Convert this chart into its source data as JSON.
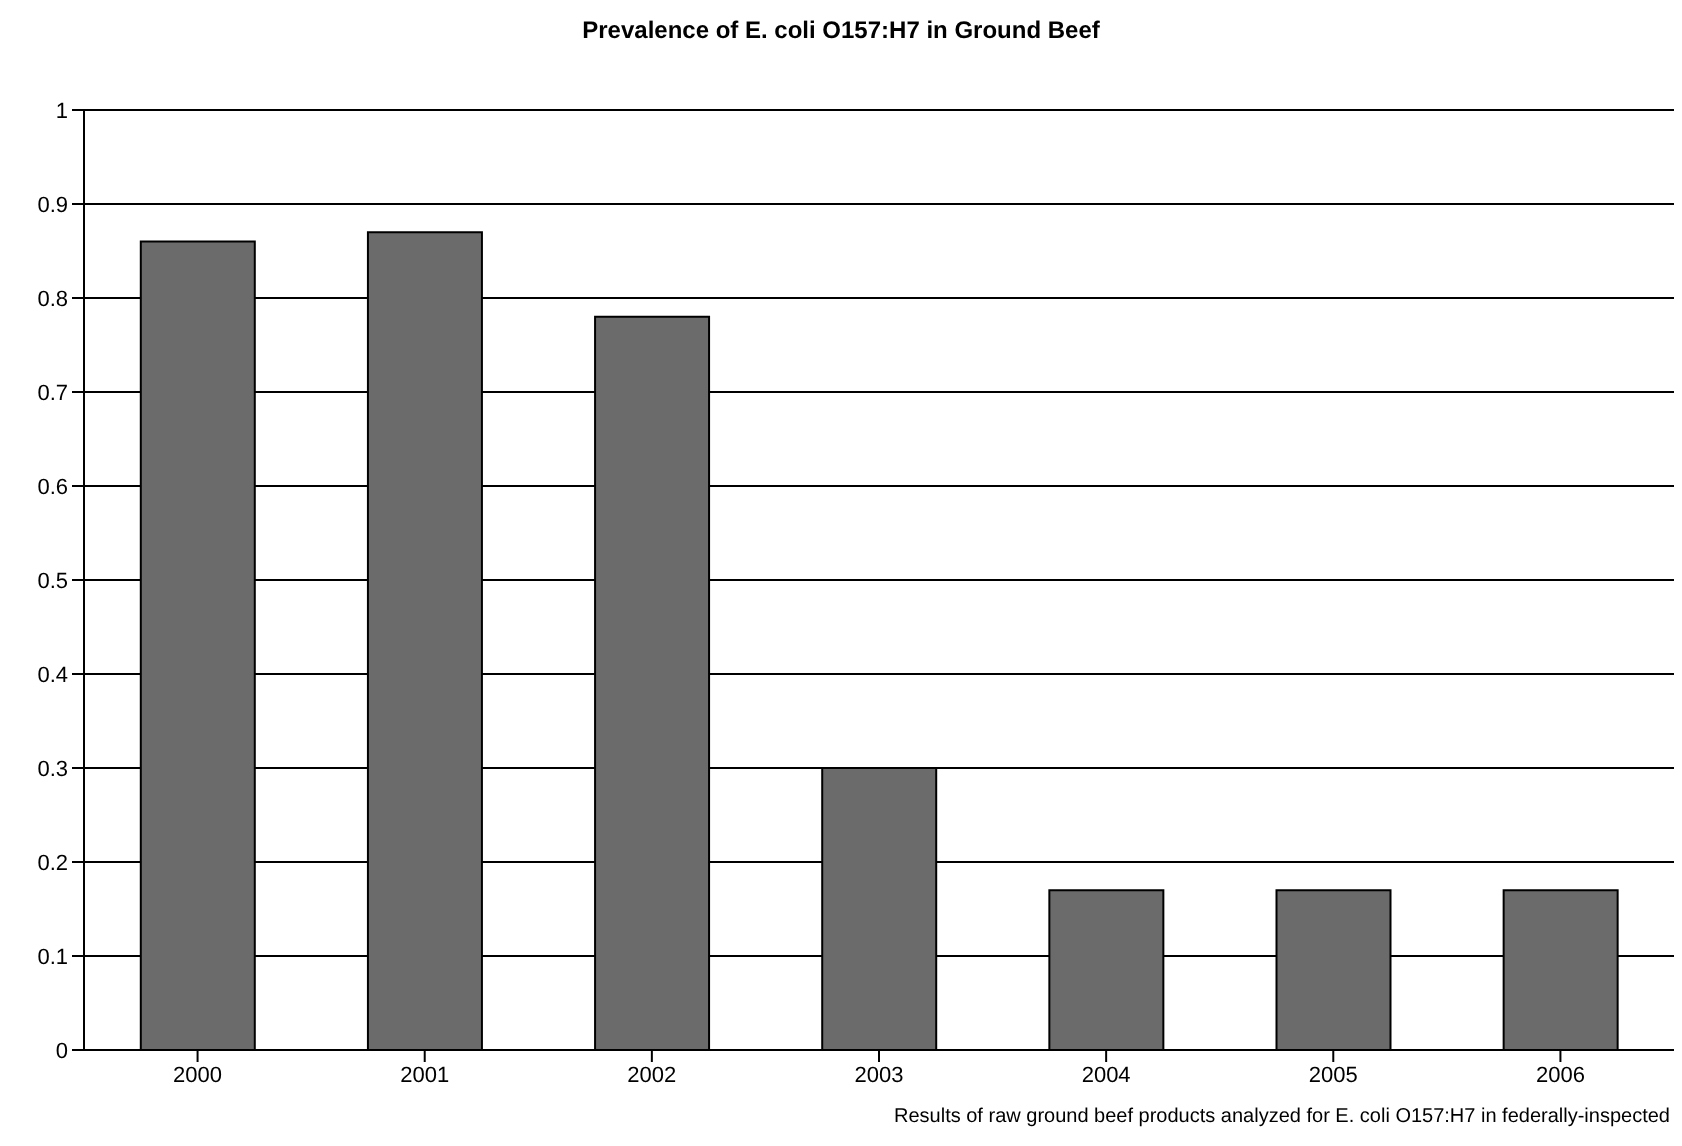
{
  "chart_data": {
    "type": "bar",
    "title": "Prevalence of E. coli O157:H7 in Ground Beef",
    "categories": [
      "2000",
      "2001",
      "2002",
      "2003",
      "2004",
      "2005",
      "2006"
    ],
    "values": [
      0.86,
      0.87,
      0.78,
      0.3,
      0.17,
      0.17,
      0.17
    ],
    "color": "#6b6b6b",
    "ylim": [
      0,
      1
    ],
    "yticks": [
      0,
      0.1,
      0.2,
      0.3,
      0.4,
      0.5,
      0.6,
      0.7,
      0.8,
      0.9,
      1
    ],
    "grid": "y",
    "annotations": [
      "Results of raw ground beef products analyzed for E. coli O157:H7 in federally-inspected"
    ]
  }
}
